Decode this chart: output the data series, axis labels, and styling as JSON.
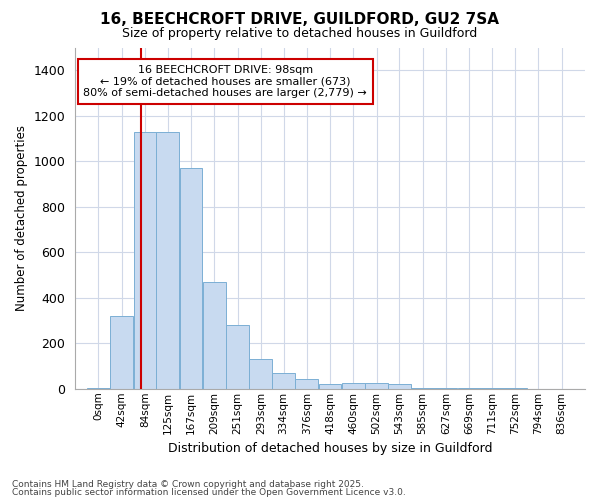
{
  "title": "16, BEECHCROFT DRIVE, GUILDFORD, GU2 7SA",
  "subtitle": "Size of property relative to detached houses in Guildford",
  "xlabel": "Distribution of detached houses by size in Guildford",
  "ylabel": "Number of detached properties",
  "footer1": "Contains HM Land Registry data © Crown copyright and database right 2025.",
  "footer2": "Contains public sector information licensed under the Open Government Licence v3.0.",
  "bar_color": "#c8daf0",
  "bar_edge_color": "#7bafd4",
  "background_color": "#ffffff",
  "plot_bg_color": "#ffffff",
  "grid_color": "#d0d8e8",
  "annotation_box_color": "#cc0000",
  "annotation_line1": "16 BEECHCROFT DRIVE: 98sqm",
  "annotation_line2": "← 19% of detached houses are smaller (673)",
  "annotation_line3": "80% of semi-detached houses are larger (2,779) →",
  "property_line_x": 98,
  "property_line_color": "#cc0000",
  "categories": [
    "0sqm",
    "42sqm",
    "84sqm",
    "125sqm",
    "167sqm",
    "209sqm",
    "251sqm",
    "293sqm",
    "334sqm",
    "376sqm",
    "418sqm",
    "460sqm",
    "502sqm",
    "543sqm",
    "585sqm",
    "627sqm",
    "669sqm",
    "711sqm",
    "752sqm",
    "794sqm",
    "836sqm"
  ],
  "bin_edges": [
    0,
    42,
    84,
    125,
    167,
    209,
    251,
    293,
    334,
    376,
    418,
    460,
    502,
    543,
    585,
    627,
    669,
    711,
    752,
    794,
    836
  ],
  "bin_width": 42,
  "values": [
    5,
    320,
    1130,
    1130,
    970,
    470,
    280,
    130,
    70,
    42,
    20,
    25,
    25,
    20,
    5,
    3,
    3,
    3,
    2,
    1,
    1
  ],
  "ylim": [
    0,
    1500
  ],
  "yticks": [
    0,
    200,
    400,
    600,
    800,
    1000,
    1200,
    1400
  ]
}
